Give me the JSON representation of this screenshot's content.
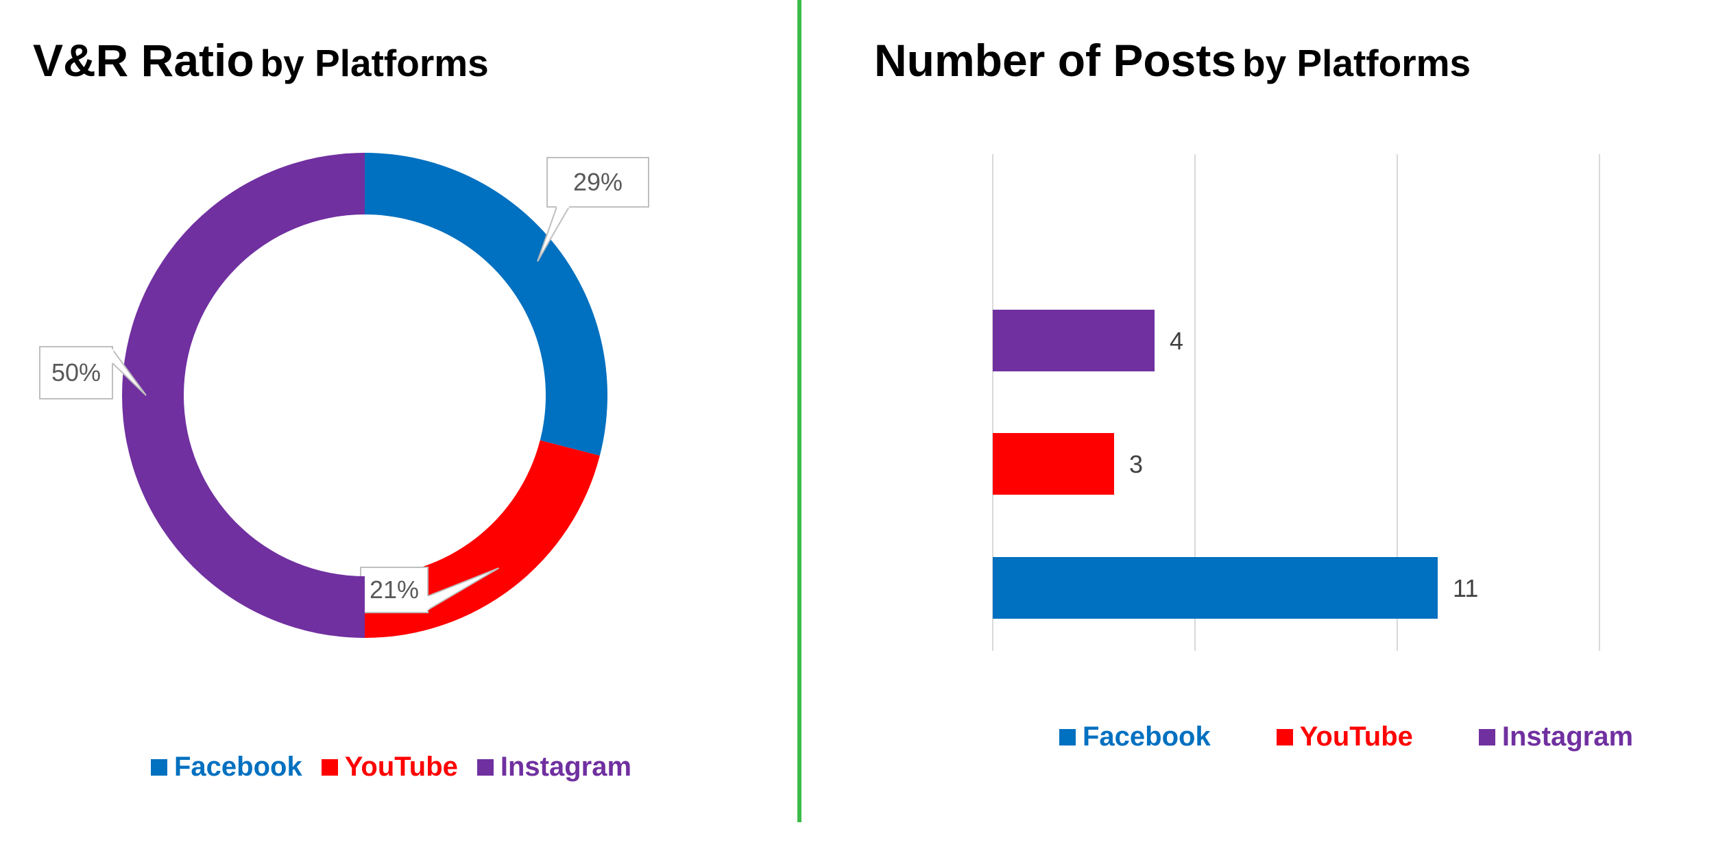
{
  "charts": {
    "left": {
      "title_main": "V&R Ratio",
      "title_sub": "by Platforms"
    },
    "right": {
      "title_main": "Number of Posts",
      "title_sub": "by Platforms"
    }
  },
  "legend": [
    {
      "label": "Facebook",
      "color": "#0070C0"
    },
    {
      "label": "YouTube",
      "color": "#FF0000"
    },
    {
      "label": "Instagram",
      "color": "#7030A0"
    }
  ],
  "chart_data": [
    {
      "type": "pie",
      "variant": "donut",
      "title": "V&R Ratio by Platforms",
      "categories": [
        "Facebook",
        "YouTube",
        "Instagram"
      ],
      "values": [
        29,
        21,
        50
      ],
      "data_labels": [
        "29%",
        "21%",
        "50%"
      ],
      "colors": [
        "#0070C0",
        "#FF0000",
        "#7030A0"
      ],
      "legend_position": "bottom"
    },
    {
      "type": "bar",
      "orientation": "horizontal",
      "title": "Number of Posts by Platforms",
      "categories": [
        "Facebook",
        "YouTube",
        "Instagram"
      ],
      "values": [
        11,
        3,
        4
      ],
      "data_labels": [
        "11",
        "3",
        "4"
      ],
      "colors": [
        "#0070C0",
        "#FF0000",
        "#7030A0"
      ],
      "xlim": [
        0,
        15
      ],
      "grid": true,
      "legend_position": "bottom"
    }
  ]
}
